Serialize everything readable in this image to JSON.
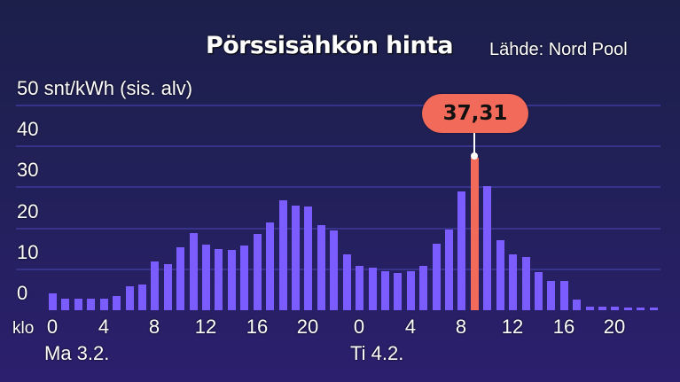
{
  "header": {
    "title": "Pörssisähkön hinta",
    "source": "Lähde: Nord Pool"
  },
  "axis": {
    "unit_label": "50 snt/kWh (sis. alv)",
    "y_ticks": [
      "40",
      "30",
      "20",
      "10",
      "0"
    ],
    "x_prefix": "klo",
    "x_ticks_day1": [
      "0",
      "4",
      "8",
      "12",
      "16",
      "20"
    ],
    "x_ticks_day2": [
      "0",
      "4",
      "8",
      "12",
      "16",
      "20"
    ],
    "day1_label": "Ma 3.2.",
    "day2_label": "Ti 4.2."
  },
  "callout": {
    "value": "37,31",
    "hour_index": 33
  },
  "colors": {
    "bar": "#7b5cff",
    "highlight": "#f26a5a",
    "grid": "#3a3590",
    "background_top": "#1c1f4a",
    "background_bottom": "#2c1f6e"
  },
  "chart_data": {
    "type": "bar",
    "title": "Pörssisähkön hinta",
    "subtitle": "Lähde: Nord Pool",
    "xlabel": "klo",
    "ylabel": "snt/kWh (sis. alv)",
    "ylim": [
      0,
      50
    ],
    "y_ticks": [
      0,
      10,
      20,
      30,
      40,
      50
    ],
    "grid": true,
    "categories": [
      "Ma 3.2. 0",
      "1",
      "2",
      "3",
      "4",
      "5",
      "6",
      "7",
      "8",
      "9",
      "10",
      "11",
      "12",
      "13",
      "14",
      "15",
      "16",
      "17",
      "18",
      "19",
      "20",
      "21",
      "22",
      "23",
      "Ti 4.2. 0",
      "1",
      "2",
      "3",
      "4",
      "5",
      "6",
      "7",
      "8",
      "9",
      "10",
      "11",
      "12",
      "13",
      "14",
      "15",
      "16",
      "17",
      "18",
      "19",
      "20",
      "21",
      "22",
      "23"
    ],
    "values": [
      4.1,
      2.8,
      2.8,
      2.8,
      2.8,
      3.5,
      5.8,
      6.3,
      11.9,
      11.3,
      15.4,
      18.8,
      16.0,
      15.0,
      14.7,
      15.8,
      18.6,
      21.4,
      26.8,
      25.6,
      25.3,
      20.8,
      19.4,
      13.7,
      10.8,
      10.3,
      9.5,
      9.0,
      9.5,
      10.8,
      16.2,
      19.7,
      29.0,
      37.31,
      30.3,
      17.1,
      13.6,
      13.0,
      9.3,
      7.2,
      7.2,
      2.7,
      0.8,
      0.8,
      0.8,
      0.6,
      0.6,
      0.6
    ],
    "highlight": {
      "index": 33,
      "label": "37,31"
    },
    "annotations": [
      "37,31"
    ]
  }
}
